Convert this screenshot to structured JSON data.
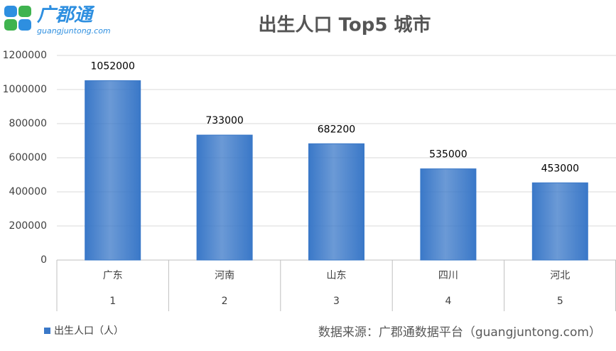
{
  "logo": {
    "name": "广郡通",
    "url": "guangjuntong.com"
  },
  "chart_data": {
    "type": "bar",
    "title": "出生人口 Top5 城市",
    "categories": [
      "广东",
      "河南",
      "山东",
      "四川",
      "河北"
    ],
    "ranks": [
      1,
      2,
      3,
      4,
      5
    ],
    "series": [
      {
        "name": "出生人口（人）",
        "color": "#3a78c8",
        "values": [
          1052000,
          733000,
          682200,
          535000,
          453000
        ]
      }
    ],
    "ylim": [
      0,
      1200000
    ],
    "yticks": [
      0,
      200000,
      400000,
      600000,
      800000,
      1000000,
      1200000
    ],
    "grid": true,
    "source": "数据来源：广郡通数据平台（guangjuntong.com）"
  }
}
